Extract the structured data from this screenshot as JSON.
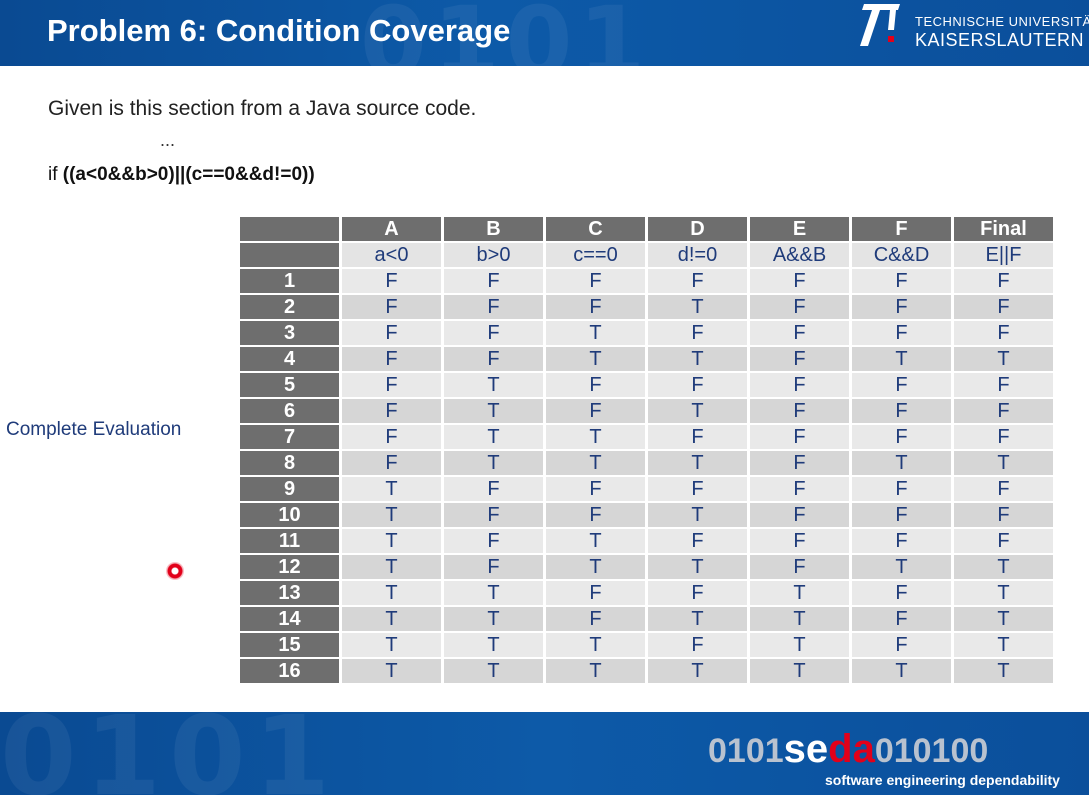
{
  "header": {
    "title": "Problem 6: Condition Coverage",
    "logo_line1": "TECHNISCHE UNIVERSITÄT",
    "logo_line2": "KAISERSLAUTERN",
    "background_digits": "0101"
  },
  "content": {
    "intro": "Given is this section from a Java source code.",
    "ellipsis": "...",
    "code_prefix": "if ",
    "code_condition": "((a<0&&b>0)||(c==0&&d!=0))",
    "side_label": "Complete Evaluation"
  },
  "table": {
    "columns": [
      "A",
      "B",
      "C",
      "D",
      "E",
      "F",
      "Final"
    ],
    "subheaders": [
      "a<0",
      "b>0",
      "c==0",
      "d!=0",
      "A&&B",
      "C&&D",
      "E||F"
    ],
    "rows": [
      {
        "n": "1",
        "v": [
          "F",
          "F",
          "F",
          "F",
          "F",
          "F",
          "F"
        ]
      },
      {
        "n": "2",
        "v": [
          "F",
          "F",
          "F",
          "T",
          "F",
          "F",
          "F"
        ]
      },
      {
        "n": "3",
        "v": [
          "F",
          "F",
          "T",
          "F",
          "F",
          "F",
          "F"
        ]
      },
      {
        "n": "4",
        "v": [
          "F",
          "F",
          "T",
          "T",
          "F",
          "T",
          "T"
        ]
      },
      {
        "n": "5",
        "v": [
          "F",
          "T",
          "F",
          "F",
          "F",
          "F",
          "F"
        ]
      },
      {
        "n": "6",
        "v": [
          "F",
          "T",
          "F",
          "T",
          "F",
          "F",
          "F"
        ]
      },
      {
        "n": "7",
        "v": [
          "F",
          "T",
          "T",
          "F",
          "F",
          "F",
          "F"
        ]
      },
      {
        "n": "8",
        "v": [
          "F",
          "T",
          "T",
          "T",
          "F",
          "T",
          "T"
        ]
      },
      {
        "n": "9",
        "v": [
          "T",
          "F",
          "F",
          "F",
          "F",
          "F",
          "F"
        ]
      },
      {
        "n": "10",
        "v": [
          "T",
          "F",
          "F",
          "T",
          "F",
          "F",
          "F"
        ]
      },
      {
        "n": "11",
        "v": [
          "T",
          "F",
          "T",
          "F",
          "F",
          "F",
          "F"
        ]
      },
      {
        "n": "12",
        "v": [
          "T",
          "F",
          "T",
          "T",
          "F",
          "T",
          "T"
        ]
      },
      {
        "n": "13",
        "v": [
          "T",
          "T",
          "F",
          "F",
          "T",
          "F",
          "T"
        ]
      },
      {
        "n": "14",
        "v": [
          "T",
          "T",
          "F",
          "T",
          "T",
          "F",
          "T"
        ]
      },
      {
        "n": "15",
        "v": [
          "T",
          "T",
          "T",
          "F",
          "T",
          "F",
          "T"
        ]
      },
      {
        "n": "16",
        "v": [
          "T",
          "T",
          "T",
          "T",
          "T",
          "T",
          "T"
        ]
      }
    ]
  },
  "footer": {
    "seda_prefix": "0101",
    "seda_se": "se",
    "seda_da": "da",
    "seda_suffix": "010100",
    "tagline": "software engineering dependability",
    "background_digits": "0101"
  },
  "colors": {
    "brand_blue": "#0d5aa8",
    "brand_red": "#e2001a",
    "table_header": "#6e6e6e",
    "cell_text": "#1f3b7a"
  },
  "icons": {
    "pointer": "laser-pointer-icon",
    "logo": "tu-kaiserslautern-logo"
  }
}
